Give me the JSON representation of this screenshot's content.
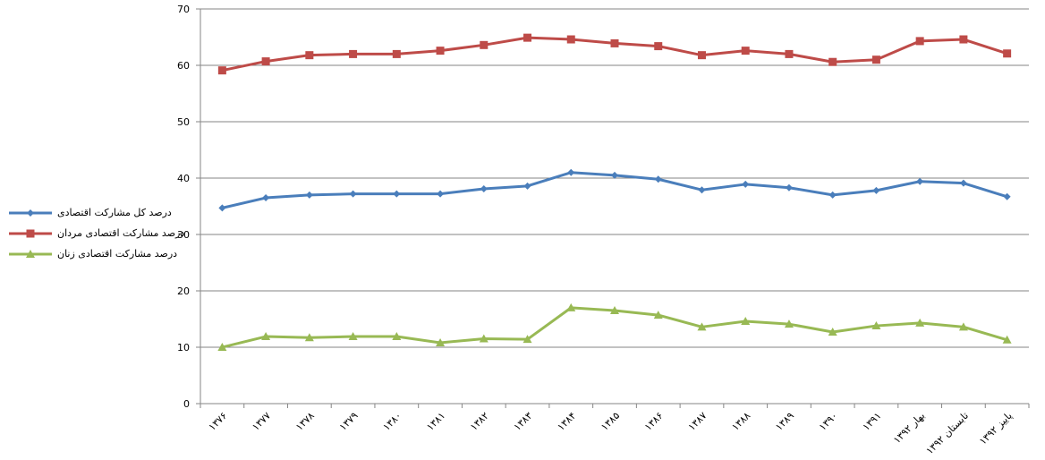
{
  "chart_data": {
    "type": "line",
    "categories": [
      "۱۳۷۶",
      "۱۳۷۷",
      "۱۳۷۸",
      "۱۳۷۹",
      "۱۳۸۰",
      "۱۳۸۱",
      "۱۳۸۲",
      "۱۳۸۳",
      "۱۳۸۴",
      "۱۳۸۵",
      "۱۳۸۶",
      "۱۳۸۷",
      "۱۳۸۸",
      "۱۳۸۹",
      "۱۳۹۰",
      "۱۳۹۱",
      "بهار ۱۳۹۲",
      "تابستان ۱۳۹۲",
      "پاییز ۱۳۹۲"
    ],
    "series": [
      {
        "name": "درصد کل مشارکت اقتصادی",
        "color": "#4A7EBB",
        "marker": "diamond",
        "values": [
          34.7,
          36.5,
          37.0,
          37.2,
          37.2,
          37.2,
          38.1,
          38.6,
          41.0,
          40.5,
          39.8,
          37.9,
          38.9,
          38.3,
          37.0,
          37.8,
          39.4,
          39.1,
          36.7
        ]
      },
      {
        "name": "درصد مشارکت اقتصادی مردان",
        "color": "#BE4B48",
        "marker": "square",
        "values": [
          59.1,
          60.7,
          61.8,
          62.0,
          62.0,
          62.6,
          63.6,
          64.9,
          64.6,
          63.9,
          63.4,
          61.8,
          62.6,
          62.0,
          60.6,
          61.0,
          64.3,
          64.6,
          62.1
        ]
      },
      {
        "name": "درصد مشارکت اقتصادی زنان",
        "color": "#98B954",
        "marker": "triangle",
        "values": [
          10.0,
          11.9,
          11.7,
          11.9,
          11.9,
          10.8,
          11.5,
          11.4,
          17.0,
          16.5,
          15.7,
          13.6,
          14.6,
          14.1,
          12.7,
          13.8,
          14.3,
          13.6,
          11.3
        ]
      }
    ],
    "y_ticks": [
      "0",
      "10",
      "20",
      "30",
      "40",
      "50",
      "60",
      "70"
    ],
    "ylim": [
      0,
      70
    ],
    "grid": true,
    "legend_position": "left"
  }
}
